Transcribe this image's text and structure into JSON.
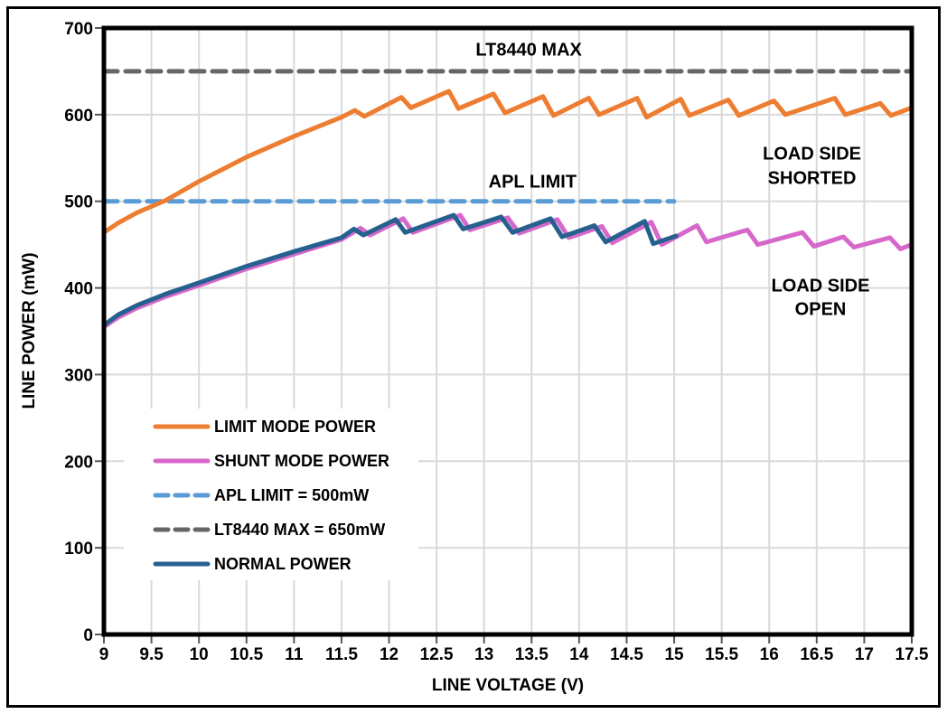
{
  "figure": {
    "background": "#ffffff",
    "outer_border_color": "#000000",
    "plot_border_color": "#000000",
    "grid_color": "#d9d9d9",
    "tick_color": "#595959"
  },
  "chart_data": {
    "type": "line",
    "title": "",
    "xlabel": "LINE VOLTAGE (V)",
    "ylabel": "LINE POWER (mW)",
    "xlim": [
      9,
      17.5
    ],
    "ylim": [
      0,
      700
    ],
    "grid": true,
    "x_ticks": [
      9,
      9.5,
      10,
      10.5,
      11,
      11.5,
      12,
      12.5,
      13,
      13.5,
      14,
      14.5,
      15,
      15.5,
      16,
      16.5,
      17,
      17.5
    ],
    "x_tick_labels": [
      "9",
      "9.5",
      "10",
      "10.5",
      "11",
      "11.5",
      "12",
      "12.5",
      "13",
      "13.5",
      "14",
      "14.5",
      "15",
      "15.5",
      "16",
      "16.5",
      "17",
      "17.5"
    ],
    "y_ticks": [
      0,
      100,
      200,
      300,
      400,
      500,
      600,
      700
    ],
    "y_tick_labels": [
      "0",
      "100",
      "200",
      "300",
      "400",
      "500",
      "600",
      "700"
    ],
    "series": [
      {
        "name": "LIMIT MODE POWER",
        "color": "#ED7D31",
        "dash": null,
        "width": 5,
        "z": 5,
        "points": [
          [
            9,
            464
          ],
          [
            9.15,
            475
          ],
          [
            9.35,
            487
          ],
          [
            9.65,
            501
          ],
          [
            10,
            523
          ],
          [
            10.5,
            551
          ],
          [
            11,
            575
          ],
          [
            11.5,
            597
          ],
          [
            11.64,
            605
          ],
          [
            11.74,
            598
          ],
          [
            12.13,
            620
          ],
          [
            12.23,
            608
          ],
          [
            12.63,
            627
          ],
          [
            12.73,
            607
          ],
          [
            13.1,
            624
          ],
          [
            13.22,
            602
          ],
          [
            13.62,
            621
          ],
          [
            13.73,
            599
          ],
          [
            14.1,
            619
          ],
          [
            14.21,
            600
          ],
          [
            14.61,
            619
          ],
          [
            14.71,
            597
          ],
          [
            15.07,
            618
          ],
          [
            15.16,
            599
          ],
          [
            15.57,
            617
          ],
          [
            15.68,
            599
          ],
          [
            16.05,
            616
          ],
          [
            16.17,
            600
          ],
          [
            16.69,
            619
          ],
          [
            16.8,
            600
          ],
          [
            17.17,
            613
          ],
          [
            17.28,
            599
          ],
          [
            17.5,
            608
          ]
        ]
      },
      {
        "name": "SHUNT MODE POWER",
        "color": "#D768CB",
        "dash": null,
        "width": 5,
        "z": 3,
        "points": [
          [
            9,
            355
          ],
          [
            9.15,
            366
          ],
          [
            9.35,
            377
          ],
          [
            9.65,
            390
          ],
          [
            10,
            403
          ],
          [
            10.5,
            422
          ],
          [
            11,
            439
          ],
          [
            11.5,
            456
          ],
          [
            11.7,
            469
          ],
          [
            11.8,
            461
          ],
          [
            12.15,
            480
          ],
          [
            12.25,
            464
          ],
          [
            12.75,
            484
          ],
          [
            12.85,
            467
          ],
          [
            13.25,
            481
          ],
          [
            13.37,
            463
          ],
          [
            13.77,
            479
          ],
          [
            13.89,
            458
          ],
          [
            14.24,
            471
          ],
          [
            14.35,
            452
          ],
          [
            14.76,
            476
          ],
          [
            14.87,
            450
          ],
          [
            15.24,
            472
          ],
          [
            15.34,
            453
          ],
          [
            15.77,
            467
          ],
          [
            15.88,
            450
          ],
          [
            16.35,
            464
          ],
          [
            16.47,
            448
          ],
          [
            16.78,
            459
          ],
          [
            16.89,
            447
          ],
          [
            17.27,
            458
          ],
          [
            17.38,
            445
          ],
          [
            17.5,
            450
          ]
        ]
      },
      {
        "name": "APL LIMIT = 500mW",
        "color": "#5B9BD5",
        "dash": [
          15,
          9
        ],
        "width": 5,
        "z": 2,
        "points": [
          [
            9,
            500
          ],
          [
            15,
            500
          ]
        ]
      },
      {
        "name": "LT8440 MAX = 650mW",
        "color": "#666666",
        "dash": [
          15,
          9
        ],
        "width": 5,
        "z": 1,
        "points": [
          [
            9,
            650
          ],
          [
            17.5,
            650
          ]
        ]
      },
      {
        "name": "NORMAL POWER",
        "color": "#26608F",
        "dash": null,
        "width": 5,
        "z": 4,
        "points": [
          [
            9,
            357
          ],
          [
            9.15,
            369
          ],
          [
            9.35,
            380
          ],
          [
            9.65,
            393
          ],
          [
            10,
            406
          ],
          [
            10.5,
            425
          ],
          [
            11,
            442
          ],
          [
            11.5,
            458
          ],
          [
            11.63,
            468
          ],
          [
            11.73,
            461
          ],
          [
            12.07,
            479
          ],
          [
            12.17,
            464
          ],
          [
            12.68,
            484
          ],
          [
            12.78,
            468
          ],
          [
            13.18,
            482
          ],
          [
            13.3,
            464
          ],
          [
            13.7,
            480
          ],
          [
            13.82,
            459
          ],
          [
            14.16,
            472
          ],
          [
            14.28,
            453
          ],
          [
            14.69,
            477
          ],
          [
            14.78,
            451
          ],
          [
            15.02,
            460
          ]
        ]
      }
    ],
    "annotations": [
      {
        "text": "LT8440 MAX",
        "x": 13.47,
        "y": 668
      },
      {
        "text": "APL LIMIT",
        "x": 13.51,
        "y": 516
      },
      {
        "text": "LOAD SIDE",
        "x": 16.45,
        "y": 548
      },
      {
        "text": "SHORTED",
        "x": 16.45,
        "y": 520
      },
      {
        "text": "LOAD SIDE",
        "x": 16.54,
        "y": 396
      },
      {
        "text": "OPEN",
        "x": 16.54,
        "y": 369
      }
    ],
    "legend_position": "lower-left-inside"
  },
  "legend": {
    "items": [
      {
        "label": "LIMIT MODE POWER",
        "color": "#ED7D31",
        "dash": false
      },
      {
        "label": "SHUNT MODE POWER",
        "color": "#D768CB",
        "dash": false
      },
      {
        "label": "APL LIMIT = 500mW",
        "color": "#5B9BD5",
        "dash": true
      },
      {
        "label": "LT8440 MAX = 650mW",
        "color": "#666666",
        "dash": true
      },
      {
        "label": "NORMAL POWER",
        "color": "#26608F",
        "dash": false
      }
    ]
  }
}
